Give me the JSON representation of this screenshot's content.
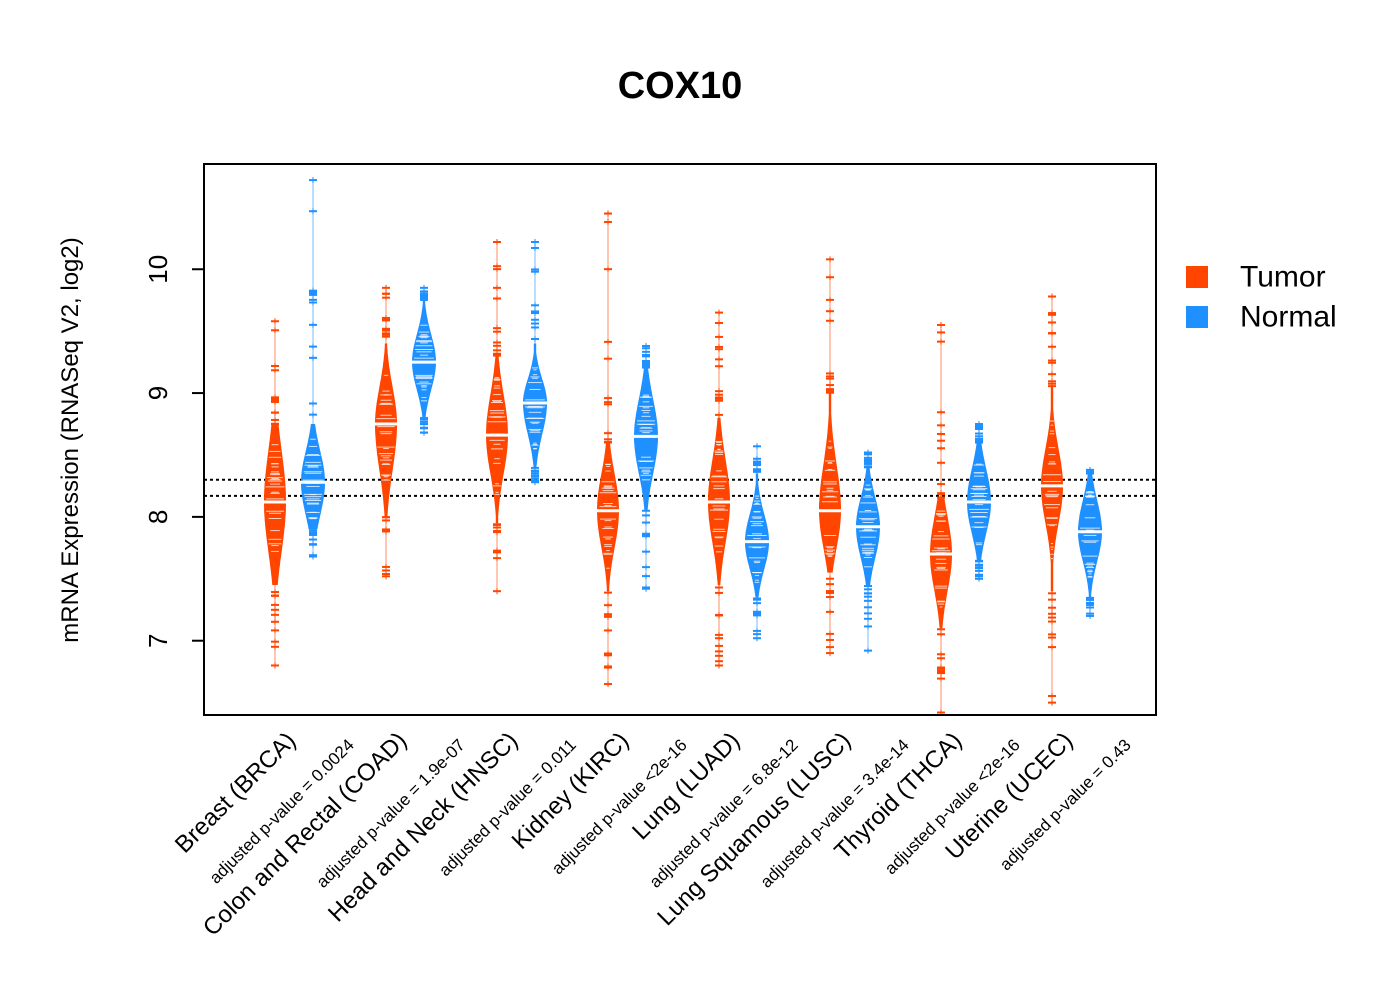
{
  "chart_data": {
    "type": "violin",
    "title": "COX10",
    "ylabel": "mRNA Expression (RNASeq V2, log2)",
    "xlabel": "",
    "ylim": [
      6.4,
      10.85
    ],
    "yticks": [
      7,
      8,
      9,
      10
    ],
    "reference_lines": [
      8.17,
      8.3
    ],
    "grid": false,
    "legend_position": "right",
    "colors": {
      "tumor": "#FF4500",
      "normal": "#1E90FF",
      "median": "#FFFFFF"
    },
    "series": [
      {
        "name": "Tumor",
        "color": "#FF4500"
      },
      {
        "name": "Normal",
        "color": "#1E90FF"
      }
    ],
    "categories": [
      {
        "label": "Breast (BRCA)",
        "pvalue": "adjusted p-value = 0.0024",
        "tumor": {
          "median": 8.12,
          "q1": 7.85,
          "q3": 8.4,
          "min": 6.8,
          "max": 9.58,
          "body_min": 7.45,
          "body_max": 8.75
        },
        "normal": {
          "median": 8.28,
          "q1": 8.1,
          "q3": 8.45,
          "min": 7.68,
          "max": 10.72,
          "body_min": 7.9,
          "body_max": 8.75
        }
      },
      {
        "label": "Colon and Rectal (COAD)",
        "pvalue": "adjusted p-value = 1.9e-07",
        "tumor": {
          "median": 8.75,
          "q1": 8.5,
          "q3": 8.95,
          "min": 7.52,
          "max": 9.85,
          "body_min": 8.0,
          "body_max": 9.4
        },
        "normal": {
          "median": 9.25,
          "q1": 9.1,
          "q3": 9.4,
          "min": 8.68,
          "max": 9.85,
          "body_min": 8.8,
          "body_max": 9.75
        }
      },
      {
        "label": "Head and Neck (HNSC)",
        "pvalue": "adjusted p-value = 0.011",
        "tumor": {
          "median": 8.66,
          "q1": 8.45,
          "q3": 8.88,
          "min": 7.4,
          "max": 10.22,
          "body_min": 7.95,
          "body_max": 9.3
        },
        "normal": {
          "median": 8.92,
          "q1": 8.75,
          "q3": 9.05,
          "min": 8.28,
          "max": 10.22,
          "body_min": 8.4,
          "body_max": 9.4
        }
      },
      {
        "label": "Kidney (KIRC)",
        "pvalue": "adjusted p-value <2e-16",
        "tumor": {
          "median": 8.05,
          "q1": 7.85,
          "q3": 8.25,
          "min": 6.65,
          "max": 10.45,
          "body_min": 7.4,
          "body_max": 8.6
        },
        "normal": {
          "median": 8.65,
          "q1": 8.45,
          "q3": 8.85,
          "min": 7.42,
          "max": 9.38,
          "body_min": 8.05,
          "body_max": 9.2
        }
      },
      {
        "label": "Lung (LUAD)",
        "pvalue": "adjusted p-value = 6.8e-12",
        "tumor": {
          "median": 8.12,
          "q1": 7.9,
          "q3": 8.35,
          "min": 6.8,
          "max": 9.65,
          "body_min": 7.45,
          "body_max": 8.8
        },
        "normal": {
          "median": 7.8,
          "q1": 7.65,
          "q3": 7.95,
          "min": 7.02,
          "max": 8.57,
          "body_min": 7.35,
          "body_max": 8.35
        }
      },
      {
        "label": "Lung Squamous (LUSC)",
        "pvalue": "adjusted p-value = 3.4e-14",
        "tumor": {
          "median": 8.05,
          "q1": 7.85,
          "q3": 8.3,
          "min": 6.9,
          "max": 10.08,
          "body_min": 7.55,
          "body_max": 9.0
        },
        "normal": {
          "median": 7.92,
          "q1": 7.75,
          "q3": 8.08,
          "min": 6.92,
          "max": 8.52,
          "body_min": 7.45,
          "body_max": 8.4
        }
      },
      {
        "label": "Thyroid (THCA)",
        "pvalue": "adjusted p-value <2e-16",
        "tumor": {
          "median": 7.7,
          "q1": 7.5,
          "q3": 7.9,
          "min": 6.42,
          "max": 9.55,
          "body_min": 7.1,
          "body_max": 8.15
        },
        "normal": {
          "median": 8.12,
          "q1": 7.95,
          "q3": 8.3,
          "min": 7.5,
          "max": 8.75,
          "body_min": 7.65,
          "body_max": 8.6
        }
      },
      {
        "label": "Uterine (UCEC)",
        "pvalue": "adjusted p-value = 0.43",
        "tumor": {
          "median": 8.25,
          "q1": 8.05,
          "q3": 8.45,
          "min": 6.5,
          "max": 9.78,
          "body_min": 7.4,
          "body_max": 9.05
        },
        "normal": {
          "median": 7.88,
          "q1": 7.72,
          "q3": 8.05,
          "min": 7.2,
          "max": 8.38,
          "body_min": 7.35,
          "body_max": 8.35
        }
      }
    ]
  }
}
